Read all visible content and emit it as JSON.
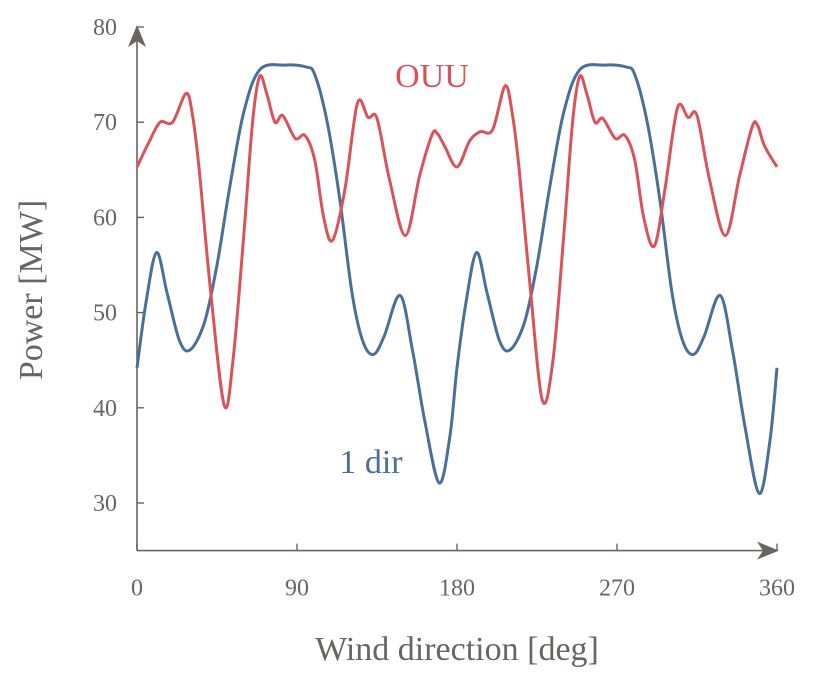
{
  "chart_data": {
    "type": "line",
    "title": "",
    "xlabel": "Wind direction [deg]",
    "ylabel": "Power [MW]",
    "xlim": [
      0,
      360
    ],
    "ylim": [
      25,
      80
    ],
    "xticks": [
      0,
      90,
      180,
      270,
      360
    ],
    "yticks": [
      30,
      40,
      50,
      60,
      70,
      80
    ],
    "grid": false,
    "axis_color": "#6b6464",
    "series": [
      {
        "name": "1 dir",
        "color": "#4a6f9a",
        "points": [
          [
            0,
            44.2
          ],
          [
            5,
            51
          ],
          [
            11,
            56.3
          ],
          [
            17,
            52
          ],
          [
            24,
            47
          ],
          [
            30,
            46.1
          ],
          [
            38,
            49
          ],
          [
            45,
            55
          ],
          [
            52,
            63
          ],
          [
            60,
            71
          ],
          [
            69,
            75.5
          ],
          [
            83,
            76
          ],
          [
            95,
            75.8
          ],
          [
            100,
            75
          ],
          [
            107,
            70
          ],
          [
            114,
            62
          ],
          [
            121,
            52
          ],
          [
            127,
            47
          ],
          [
            133,
            45.6
          ],
          [
            139,
            47.5
          ],
          [
            148,
            51.8
          ],
          [
            155,
            46
          ],
          [
            162,
            38.5
          ],
          [
            170,
            32.1
          ],
          [
            176,
            37
          ],
          [
            180,
            44.2
          ],
          [
            185,
            51
          ],
          [
            191,
            56.3
          ],
          [
            197,
            52
          ],
          [
            204,
            47
          ],
          [
            210,
            46.1
          ],
          [
            218,
            49
          ],
          [
            225,
            55
          ],
          [
            232,
            63
          ],
          [
            240,
            71
          ],
          [
            249,
            75.5
          ],
          [
            263,
            76
          ],
          [
            275,
            75.8
          ],
          [
            280,
            75
          ],
          [
            287,
            70
          ],
          [
            294,
            62
          ],
          [
            301,
            52
          ],
          [
            307,
            47
          ],
          [
            313,
            45.6
          ],
          [
            319,
            47.5
          ],
          [
            328,
            51.8
          ],
          [
            335,
            46
          ],
          [
            342,
            38
          ],
          [
            350,
            31
          ],
          [
            356,
            36.5
          ],
          [
            360,
            44.2
          ]
        ]
      },
      {
        "name": "OUU",
        "color": "#d9545a",
        "points": [
          [
            0,
            65.3
          ],
          [
            7,
            68
          ],
          [
            13,
            70
          ],
          [
            20,
            70
          ],
          [
            27.5,
            73
          ],
          [
            31,
            71
          ],
          [
            35,
            65
          ],
          [
            41,
            53
          ],
          [
            49,
            40.3
          ],
          [
            54,
            45
          ],
          [
            60,
            58
          ],
          [
            65,
            70
          ],
          [
            69,
            74.8
          ],
          [
            73,
            73
          ],
          [
            77.6,
            70
          ],
          [
            82,
            70.7
          ],
          [
            89,
            68.3
          ],
          [
            94.5,
            68.6
          ],
          [
            100,
            66
          ],
          [
            105,
            60
          ],
          [
            110,
            57.6
          ],
          [
            117,
            63
          ],
          [
            124,
            72
          ],
          [
            130,
            70.5
          ],
          [
            135,
            70.4
          ],
          [
            142,
            64
          ],
          [
            151,
            58.1
          ],
          [
            159,
            64.4
          ],
          [
            166,
            68.7
          ],
          [
            169,
            68.8
          ],
          [
            173,
            67.5
          ],
          [
            180,
            65.3
          ],
          [
            187,
            68
          ],
          [
            193,
            69
          ],
          [
            200,
            69.2
          ],
          [
            207,
            73.8
          ],
          [
            211,
            71
          ],
          [
            215,
            65
          ],
          [
            221,
            53
          ],
          [
            228,
            40.8
          ],
          [
            234,
            45
          ],
          [
            240,
            58
          ],
          [
            245,
            70
          ],
          [
            249,
            74.8
          ],
          [
            253,
            73
          ],
          [
            257.6,
            70
          ],
          [
            262,
            70.4
          ],
          [
            269,
            68.3
          ],
          [
            274.5,
            68.6
          ],
          [
            280,
            66
          ],
          [
            285,
            60
          ],
          [
            291,
            57
          ],
          [
            297,
            63
          ],
          [
            304,
            71.5
          ],
          [
            310,
            70.5
          ],
          [
            315,
            70.7
          ],
          [
            322,
            64
          ],
          [
            331,
            58.1
          ],
          [
            339,
            64.4
          ],
          [
            346,
            69.5
          ],
          [
            349,
            69.7
          ],
          [
            353,
            67.5
          ],
          [
            360,
            65.3
          ]
        ]
      }
    ],
    "annotations": [
      {
        "text": "OUU",
        "series": "OUU"
      },
      {
        "text": "1 dir",
        "series": "1 dir"
      }
    ]
  }
}
